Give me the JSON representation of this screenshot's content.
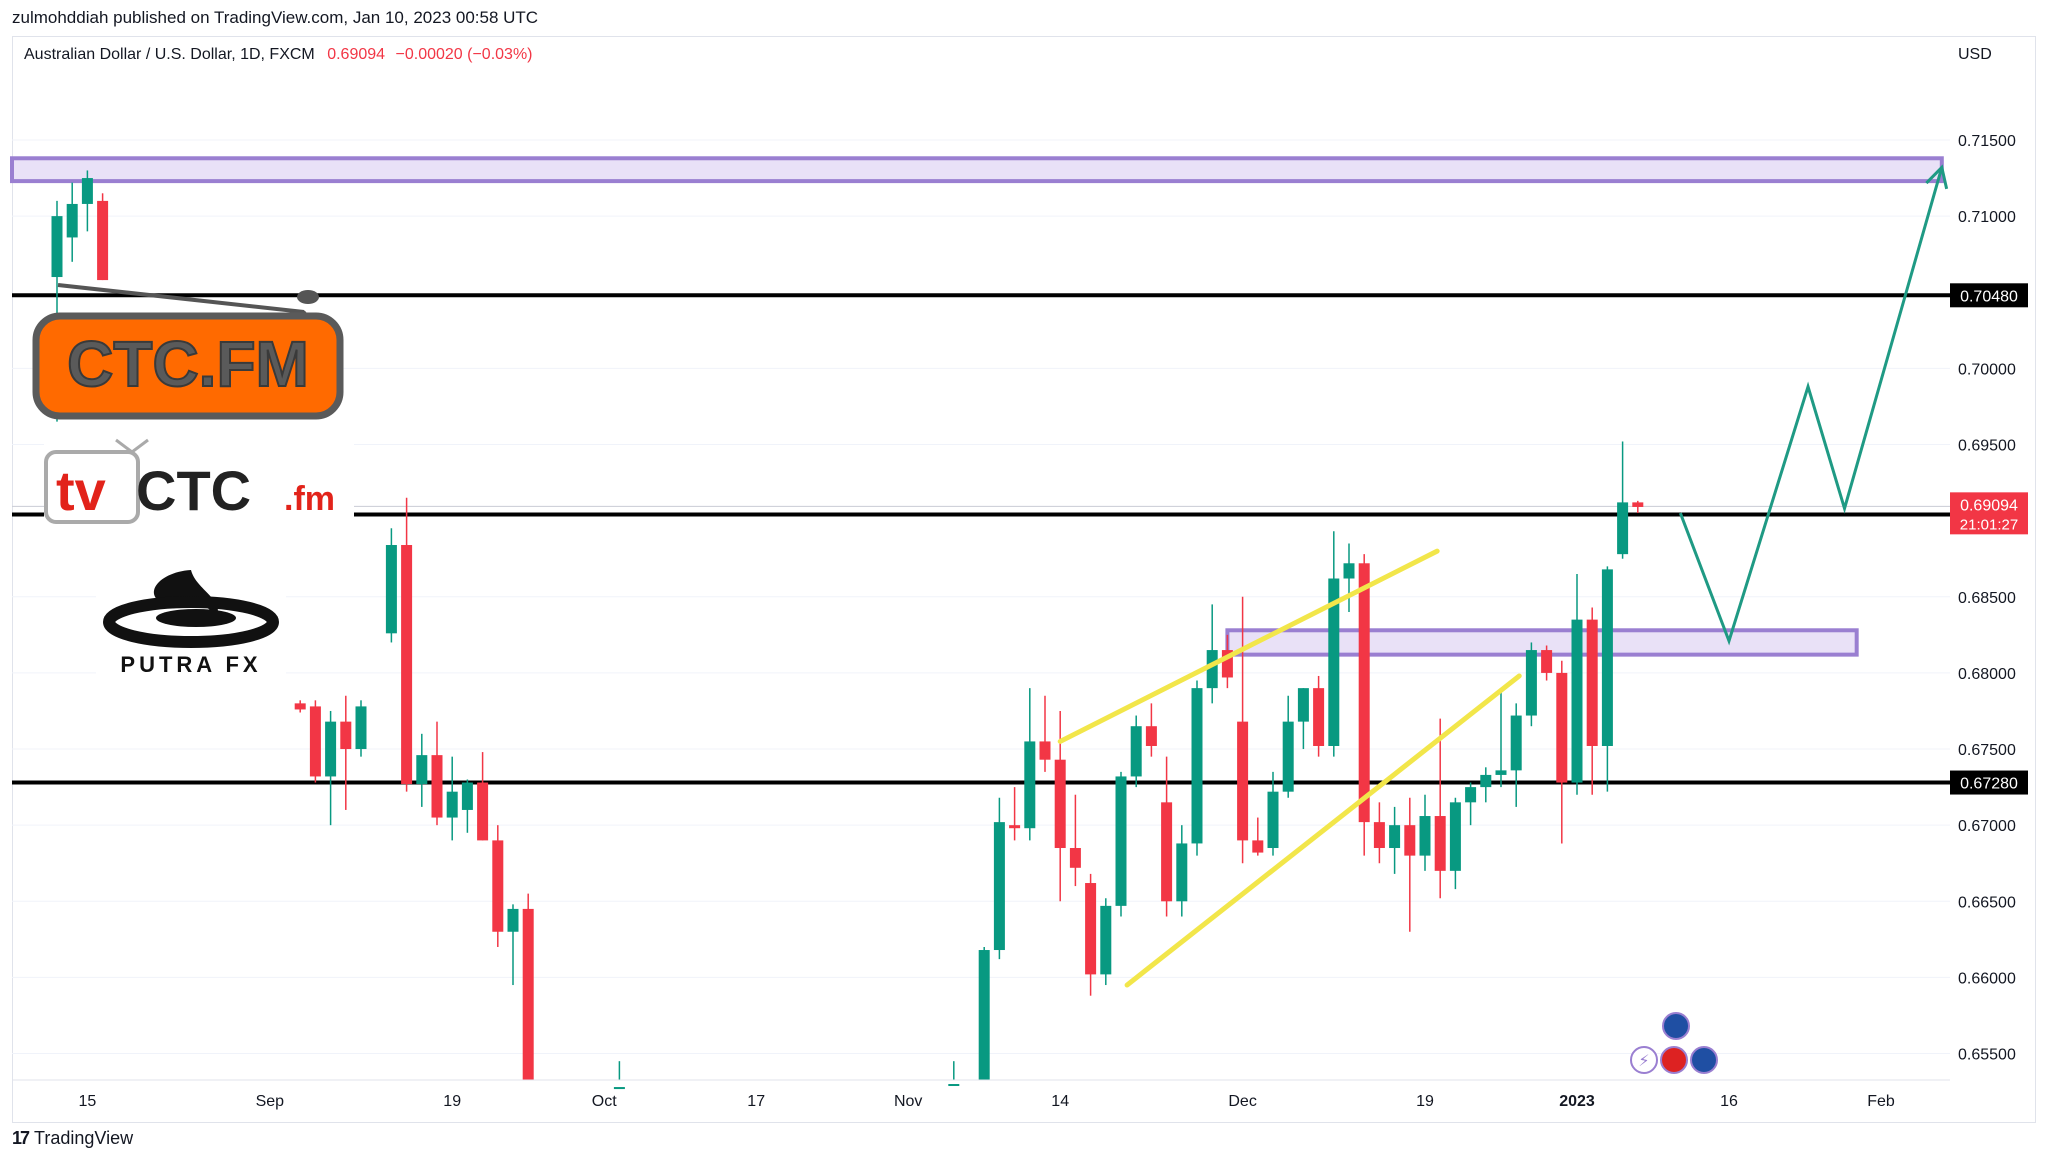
{
  "header": {
    "publish_line": "zulmohddiah published on TradingView.com, Jan 10, 2023 00:58 UTC",
    "symbol": "Australian Dollar / U.S. Dollar, 1D, FXCM",
    "last_price": "0.69094",
    "change": "−0.00020 (−0.03%)",
    "currency": "USD"
  },
  "footer": {
    "brand": "TradingView"
  },
  "logos": {
    "ctc_fm": "CTC.FM",
    "tvctc_fm_tv": "tv",
    "tvctc_fm_ctc": "CTC",
    "tvctc_fm_suffix": ".fm",
    "putra_fx": "PUTRA FX"
  },
  "colors": {
    "up": "#089981",
    "down": "#f23645",
    "zone_fill": "#e9e1f7",
    "zone_stroke": "#9a7fd1",
    "channel": "#f2e64a",
    "projection": "#1f9a84",
    "level": "#000000"
  },
  "chart_data": {
    "type": "candlestick",
    "symbol": "AUDUSD",
    "timeframe": "1D",
    "ylim": [
      0.6525,
      0.7175
    ],
    "y_ticks": [
      "0.71500",
      "0.71000",
      "0.70000",
      "0.69500",
      "0.68500",
      "0.68000",
      "0.67500",
      "0.67000",
      "0.66500",
      "0.66000",
      "0.65500"
    ],
    "x_tick_labels": [
      "15",
      "Sep",
      "19",
      "Oct",
      "17",
      "Nov",
      "14",
      "Dec",
      "19",
      "2023",
      "16",
      "Feb"
    ],
    "x_tick_positions": [
      1,
      7,
      13,
      18,
      23,
      28,
      33,
      39,
      45,
      50,
      55,
      60
    ],
    "x_bold_ticks": [
      "2023"
    ],
    "horizontal_levels": [
      {
        "price": 0.7048,
        "label": "0.70480"
      },
      {
        "price": 0.6904,
        "label": "0.69040"
      },
      {
        "price": 0.6728,
        "label": "0.67280"
      }
    ],
    "last_price_label": {
      "price": 0.69094,
      "label": "0.69094",
      "countdown": "21:01:27"
    },
    "zones": [
      {
        "x_start": 0,
        "x_end": 62,
        "top": 0.7138,
        "bottom": 0.7123
      },
      {
        "x_start": 38.5,
        "x_end": 59.2,
        "top": 0.6828,
        "bottom": 0.6812
      }
    ],
    "channel_lines": [
      {
        "x1": 33.0,
        "y1": 0.6755,
        "x2": 45.4,
        "y2": 0.688
      },
      {
        "x1": 35.2,
        "y1": 0.6595,
        "x2": 48.1,
        "y2": 0.6798
      }
    ],
    "projection_path": [
      [
        53.4,
        0.6905
      ],
      [
        55.0,
        0.6821
      ],
      [
        57.6,
        0.6988
      ],
      [
        58.8,
        0.6908
      ],
      [
        62.0,
        0.7132
      ]
    ],
    "candles": [
      {
        "x": 0.0,
        "o": 0.706,
        "h": 0.711,
        "l": 0.6965,
        "c": 0.71
      },
      {
        "x": 0.5,
        "o": 0.7086,
        "h": 0.7122,
        "l": 0.707,
        "c": 0.7108
      },
      {
        "x": 1.0,
        "o": 0.7108,
        "h": 0.713,
        "l": 0.709,
        "c": 0.7125
      },
      {
        "x": 1.5,
        "o": 0.711,
        "h": 0.7115,
        "l": 0.7058,
        "c": 0.7058
      },
      {
        "x": 8.0,
        "o": 0.678,
        "h": 0.6782,
        "l": 0.6774,
        "c": 0.6776
      },
      {
        "x": 8.5,
        "o": 0.6778,
        "h": 0.6782,
        "l": 0.6728,
        "c": 0.6732
      },
      {
        "x": 9.0,
        "o": 0.6732,
        "h": 0.6775,
        "l": 0.67,
        "c": 0.6768
      },
      {
        "x": 9.5,
        "o": 0.6768,
        "h": 0.6785,
        "l": 0.671,
        "c": 0.675
      },
      {
        "x": 10.0,
        "o": 0.675,
        "h": 0.6782,
        "l": 0.6745,
        "c": 0.6778
      },
      {
        "x": 11.0,
        "o": 0.6826,
        "h": 0.6895,
        "l": 0.682,
        "c": 0.6884
      },
      {
        "x": 11.5,
        "o": 0.6884,
        "h": 0.6915,
        "l": 0.6722,
        "c": 0.6727
      },
      {
        "x": 12.0,
        "o": 0.6727,
        "h": 0.676,
        "l": 0.6712,
        "c": 0.6746
      },
      {
        "x": 12.5,
        "o": 0.6746,
        "h": 0.6768,
        "l": 0.67,
        "c": 0.6705
      },
      {
        "x": 13.0,
        "o": 0.6705,
        "h": 0.6745,
        "l": 0.669,
        "c": 0.6722
      },
      {
        "x": 13.5,
        "o": 0.671,
        "h": 0.673,
        "l": 0.6695,
        "c": 0.6728
      },
      {
        "x": 14.0,
        "o": 0.6728,
        "h": 0.6748,
        "l": 0.669,
        "c": 0.669
      },
      {
        "x": 14.5,
        "o": 0.669,
        "h": 0.67,
        "l": 0.662,
        "c": 0.663
      },
      {
        "x": 15.0,
        "o": 0.663,
        "h": 0.6648,
        "l": 0.6595,
        "c": 0.6645
      },
      {
        "x": 15.5,
        "o": 0.6645,
        "h": 0.6655,
        "l": 0.6525,
        "c": 0.6525
      },
      {
        "x": 18.5,
        "o": 0.6526,
        "h": 0.6545,
        "l": 0.6526,
        "c": 0.6528
      },
      {
        "x": 29.5,
        "o": 0.6528,
        "h": 0.6545,
        "l": 0.6526,
        "c": 0.653
      },
      {
        "x": 30.5,
        "o": 0.6525,
        "h": 0.662,
        "l": 0.6525,
        "c": 0.6618
      },
      {
        "x": 31.0,
        "o": 0.6618,
        "h": 0.6718,
        "l": 0.6612,
        "c": 0.6702
      },
      {
        "x": 31.5,
        "o": 0.67,
        "h": 0.6725,
        "l": 0.669,
        "c": 0.6698
      },
      {
        "x": 32.0,
        "o": 0.6698,
        "h": 0.679,
        "l": 0.669,
        "c": 0.6755
      },
      {
        "x": 32.5,
        "o": 0.6755,
        "h": 0.6785,
        "l": 0.6735,
        "c": 0.6743
      },
      {
        "x": 33.0,
        "o": 0.6743,
        "h": 0.6775,
        "l": 0.665,
        "c": 0.6685
      },
      {
        "x": 33.5,
        "o": 0.6685,
        "h": 0.672,
        "l": 0.666,
        "c": 0.6672
      },
      {
        "x": 34.0,
        "o": 0.6662,
        "h": 0.6668,
        "l": 0.6588,
        "c": 0.6602
      },
      {
        "x": 34.5,
        "o": 0.6602,
        "h": 0.6652,
        "l": 0.6595,
        "c": 0.6647
      },
      {
        "x": 35.0,
        "o": 0.6647,
        "h": 0.6735,
        "l": 0.664,
        "c": 0.6732
      },
      {
        "x": 35.5,
        "o": 0.6732,
        "h": 0.6772,
        "l": 0.6725,
        "c": 0.6765
      },
      {
        "x": 36.0,
        "o": 0.6765,
        "h": 0.678,
        "l": 0.6745,
        "c": 0.6752
      },
      {
        "x": 36.5,
        "o": 0.6715,
        "h": 0.6745,
        "l": 0.664,
        "c": 0.665
      },
      {
        "x": 37.0,
        "o": 0.665,
        "h": 0.67,
        "l": 0.664,
        "c": 0.6688
      },
      {
        "x": 37.5,
        "o": 0.6688,
        "h": 0.6795,
        "l": 0.668,
        "c": 0.679
      },
      {
        "x": 38.0,
        "o": 0.679,
        "h": 0.6845,
        "l": 0.678,
        "c": 0.6815
      },
      {
        "x": 38.5,
        "o": 0.6815,
        "h": 0.6825,
        "l": 0.679,
        "c": 0.6797
      },
      {
        "x": 39.0,
        "o": 0.6768,
        "h": 0.685,
        "l": 0.6675,
        "c": 0.669
      },
      {
        "x": 39.5,
        "o": 0.669,
        "h": 0.6705,
        "l": 0.668,
        "c": 0.6682
      },
      {
        "x": 40.0,
        "o": 0.6685,
        "h": 0.6735,
        "l": 0.668,
        "c": 0.6722
      },
      {
        "x": 40.5,
        "o": 0.6722,
        "h": 0.6785,
        "l": 0.6718,
        "c": 0.6768
      },
      {
        "x": 41.0,
        "o": 0.6768,
        "h": 0.679,
        "l": 0.675,
        "c": 0.679
      },
      {
        "x": 41.5,
        "o": 0.679,
        "h": 0.6798,
        "l": 0.6745,
        "c": 0.6752
      },
      {
        "x": 42.0,
        "o": 0.6752,
        "h": 0.6893,
        "l": 0.6745,
        "c": 0.6862
      },
      {
        "x": 42.5,
        "o": 0.6862,
        "h": 0.6885,
        "l": 0.684,
        "c": 0.6872
      },
      {
        "x": 43.0,
        "o": 0.6872,
        "h": 0.6878,
        "l": 0.668,
        "c": 0.6702
      },
      {
        "x": 43.5,
        "o": 0.6702,
        "h": 0.6715,
        "l": 0.6675,
        "c": 0.6685
      },
      {
        "x": 44.0,
        "o": 0.6685,
        "h": 0.6712,
        "l": 0.6668,
        "c": 0.67
      },
      {
        "x": 44.5,
        "o": 0.67,
        "h": 0.6718,
        "l": 0.663,
        "c": 0.668
      },
      {
        "x": 45.0,
        "o": 0.668,
        "h": 0.672,
        "l": 0.667,
        "c": 0.6706
      },
      {
        "x": 45.5,
        "o": 0.6706,
        "h": 0.677,
        "l": 0.6652,
        "c": 0.667
      },
      {
        "x": 46.0,
        "o": 0.667,
        "h": 0.6718,
        "l": 0.6658,
        "c": 0.6715
      },
      {
        "x": 46.5,
        "o": 0.6715,
        "h": 0.6728,
        "l": 0.67,
        "c": 0.6725
      },
      {
        "x": 47.0,
        "o": 0.6725,
        "h": 0.6738,
        "l": 0.6715,
        "c": 0.6733
      },
      {
        "x": 47.5,
        "o": 0.6733,
        "h": 0.679,
        "l": 0.6725,
        "c": 0.6736
      },
      {
        "x": 48.0,
        "o": 0.6736,
        "h": 0.678,
        "l": 0.6712,
        "c": 0.6772
      },
      {
        "x": 48.5,
        "o": 0.6772,
        "h": 0.682,
        "l": 0.6765,
        "c": 0.6815
      },
      {
        "x": 49.0,
        "o": 0.6815,
        "h": 0.6818,
        "l": 0.6795,
        "c": 0.68
      },
      {
        "x": 49.5,
        "o": 0.68,
        "h": 0.6808,
        "l": 0.6688,
        "c": 0.6728
      },
      {
        "x": 50.0,
        "o": 0.6728,
        "h": 0.6865,
        "l": 0.672,
        "c": 0.6835
      },
      {
        "x": 50.5,
        "o": 0.6835,
        "h": 0.6843,
        "l": 0.672,
        "c": 0.6752
      },
      {
        "x": 51.0,
        "o": 0.6752,
        "h": 0.687,
        "l": 0.6722,
        "c": 0.6868
      },
      {
        "x": 51.5,
        "o": 0.6878,
        "h": 0.6952,
        "l": 0.6875,
        "c": 0.6912
      },
      {
        "x": 52.0,
        "o": 0.6912,
        "h": 0.6913,
        "l": 0.6905,
        "c": 0.6909
      }
    ]
  }
}
